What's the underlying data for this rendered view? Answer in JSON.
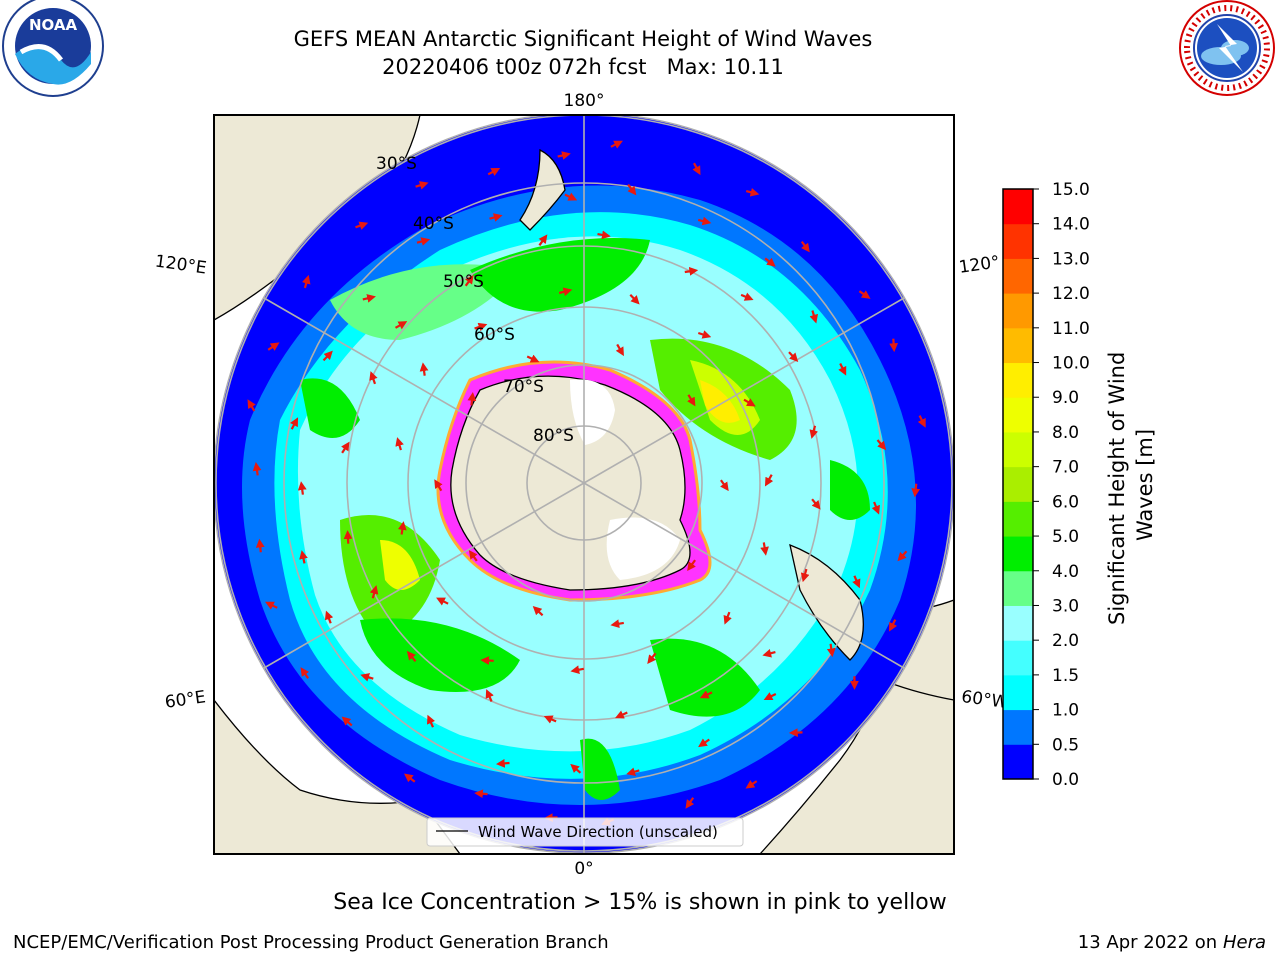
{
  "header": {
    "title_line1": "GEFS MEAN Antarctic Significant Height of Wind Waves",
    "title_line2": "20220406 t00z 072h fcst   Max: 10.11"
  },
  "logos": {
    "noaa_text": "NOAA",
    "nws_ring_text": "NATIONAL WEATHER SERVICE"
  },
  "map": {
    "projection": "south-polar-stereographic",
    "lon_labels": {
      "top": "180°",
      "bottom": "0°",
      "left_upper": "120°E",
      "right_upper": "120°",
      "left_lower": "60°E",
      "right_lower": "60°W"
    },
    "lat_labels": [
      "30°S",
      "40°S",
      "50°S",
      "60°S",
      "70°S",
      "80°S"
    ],
    "legend_label": "Wind Wave Direction (unscaled)",
    "arrow_color": "#e8190f",
    "land_color": "#ede9d6",
    "sea_ice_color": "#ff33ff"
  },
  "colorbar": {
    "label": "Significant Height of Wind Waves [m]",
    "ticks": [
      "0.0",
      "0.5",
      "1.0",
      "1.5",
      "2.0",
      "3.0",
      "4.0",
      "5.0",
      "6.0",
      "7.0",
      "8.0",
      "9.0",
      "10.0",
      "11.0",
      "12.0",
      "13.0",
      "14.0",
      "15.0"
    ],
    "colors": [
      "#0000ff",
      "#0077ff",
      "#00ffff",
      "#44ffff",
      "#99ffff",
      "#66ff88",
      "#00ee00",
      "#55ee00",
      "#aaee00",
      "#ccff00",
      "#eeff00",
      "#ffee00",
      "#ffbb00",
      "#ff9900",
      "#ff6600",
      "#ff3300",
      "#ff0000"
    ]
  },
  "caption": "Sea Ice Concentration > 15% is shown in pink to yellow",
  "footer": {
    "left": "NCEP/EMC/Verification Post Processing Product Generation Branch",
    "right_date": "13 Apr 2022 on ",
    "right_host": "Hera"
  }
}
